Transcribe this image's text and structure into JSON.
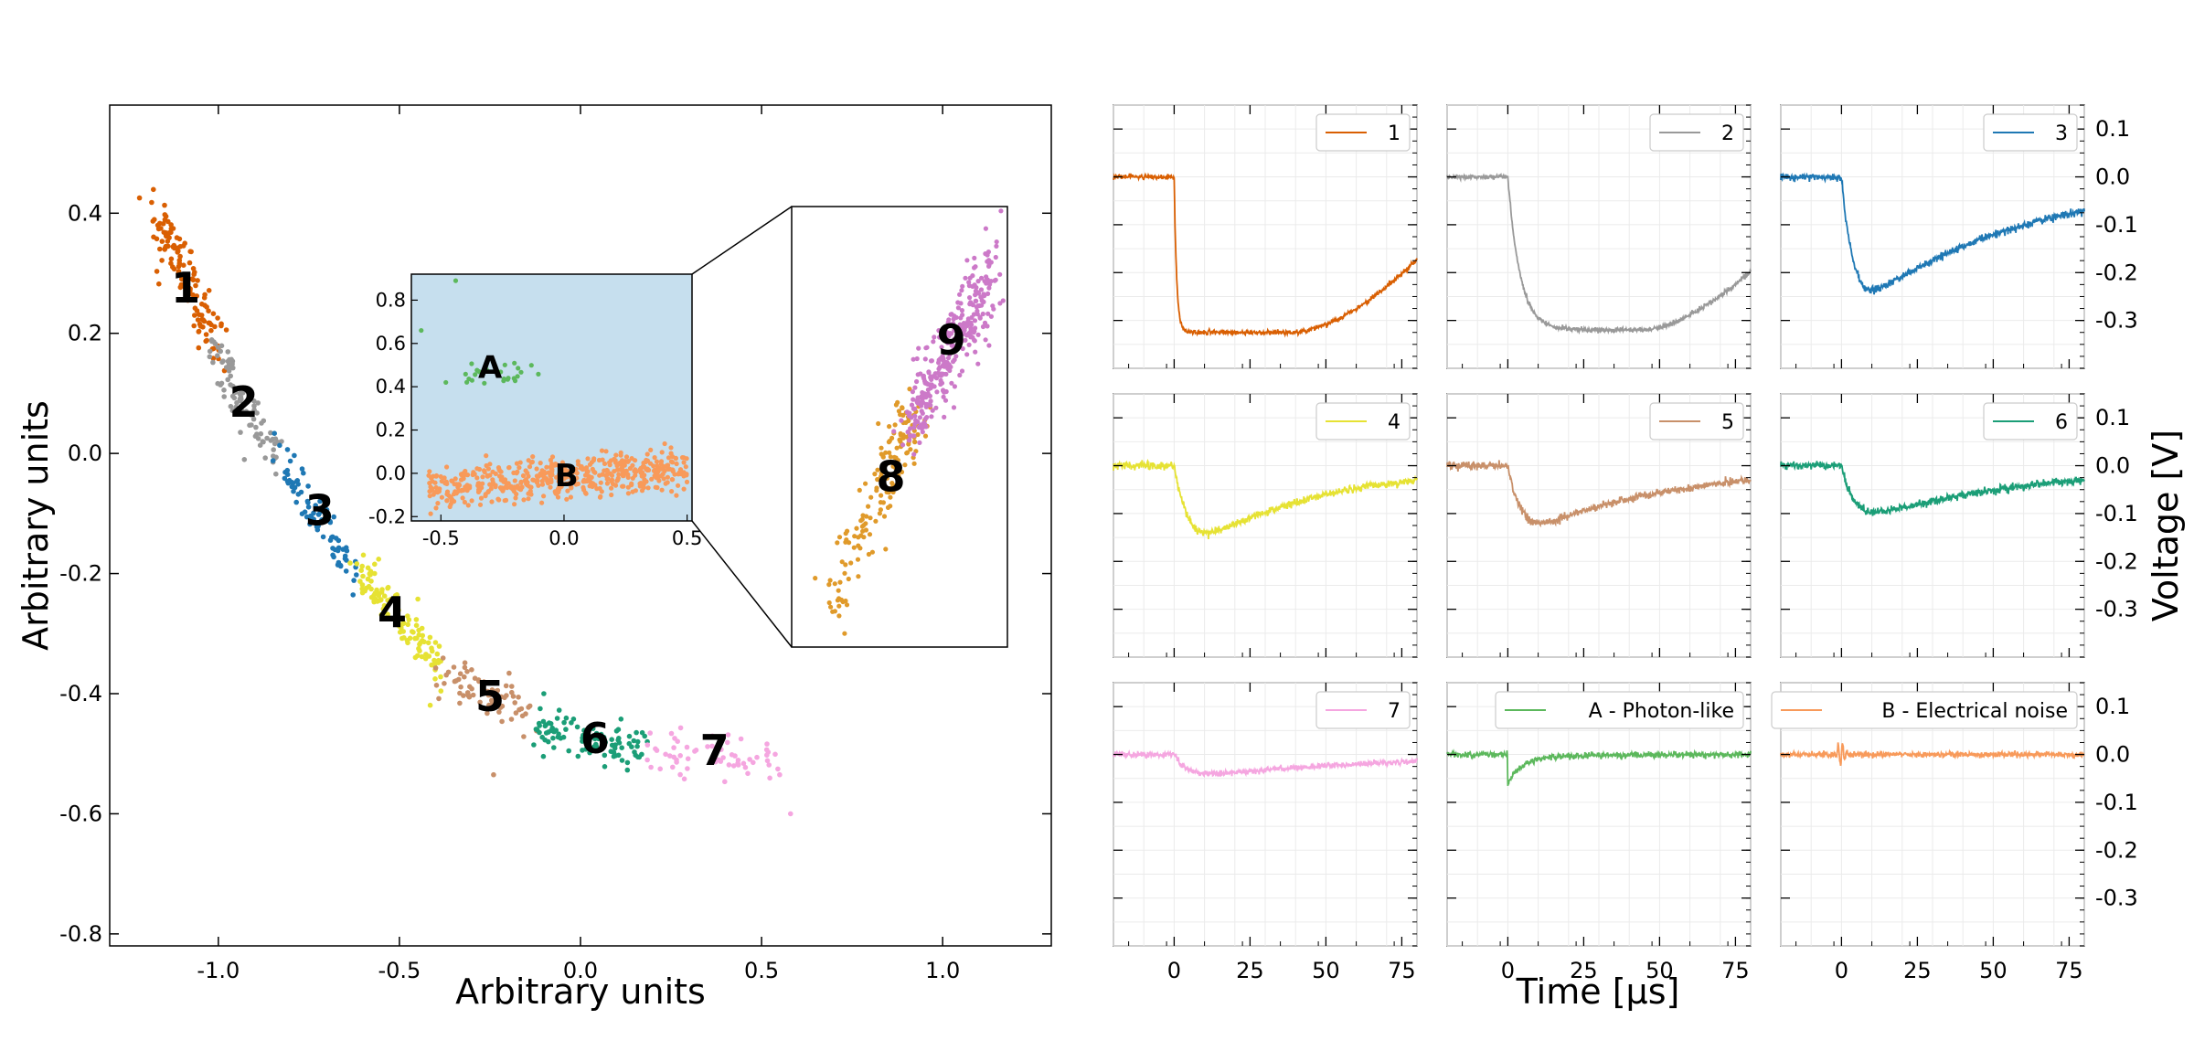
{
  "colors": {
    "c1": "#d95f02",
    "c2": "#999999",
    "c3": "#1f78b4",
    "c4": "#e6e233",
    "c5": "#c8906a",
    "c6": "#1b9e77",
    "c7": "#f5a6e0",
    "cA": "#5cb85c",
    "cB": "#f89a5a",
    "c8": "#e09a2a",
    "c9": "#cc79c8",
    "inset_bg": "#c6dfee"
  },
  "chart_data": [
    {
      "type": "scatter",
      "xlabel": "Arbitrary units",
      "ylabel": "Arbitrary units",
      "xlim": [
        -1.3,
        1.3
      ],
      "ylim": [
        -0.82,
        0.58
      ],
      "xticks": [
        -1.0,
        -0.5,
        0.0,
        0.5,
        1.0
      ],
      "xtick_labels": [
        "-1.0",
        "-0.5",
        "0.0",
        "0.5",
        "1.0"
      ],
      "yticks": [
        -0.8,
        -0.6,
        -0.4,
        -0.2,
        0.0,
        0.2,
        0.4
      ],
      "ytick_labels": [
        "-0.8",
        "-0.6",
        "-0.4",
        "-0.2",
        "0.0",
        "0.2",
        "0.4"
      ],
      "clusters": [
        {
          "label": "1",
          "color": "c1",
          "x_range": [
            -1.18,
            -1.0
          ],
          "y_range": [
            0.41,
            0.18
          ],
          "spread": 0.025,
          "n": 130,
          "label_at": [
            -1.09,
            0.27
          ]
        },
        {
          "label": "2",
          "color": "c2",
          "x_range": [
            -1.02,
            -0.84
          ],
          "y_range": [
            0.18,
            -0.01
          ],
          "spread": 0.018,
          "n": 90,
          "label_at": [
            -0.93,
            0.08
          ]
        },
        {
          "label": "3",
          "color": "c3",
          "x_range": [
            -0.84,
            -0.63
          ],
          "y_range": [
            0.0,
            -0.2
          ],
          "spread": 0.018,
          "n": 80,
          "label_at": [
            -0.72,
            -0.1
          ]
        },
        {
          "label": "4",
          "color": "c4",
          "x_range": [
            -0.63,
            -0.38
          ],
          "y_range": [
            -0.18,
            -0.36
          ],
          "spread": 0.02,
          "n": 110,
          "label_at": [
            -0.52,
            -0.27
          ]
        },
        {
          "label": "5",
          "color": "c5",
          "x_range": [
            -0.4,
            -0.13
          ],
          "y_range": [
            -0.36,
            -0.44
          ],
          "spread": 0.022,
          "n": 70,
          "label_at": [
            -0.25,
            -0.41
          ]
        },
        {
          "label": "6",
          "color": "c6",
          "x_range": [
            -0.12,
            0.18
          ],
          "y_range": [
            -0.45,
            -0.5
          ],
          "spread": 0.018,
          "n": 95,
          "label_at": [
            0.04,
            -0.48
          ]
        },
        {
          "label": "7",
          "color": "c7",
          "x_range": [
            0.18,
            0.55
          ],
          "y_range": [
            -0.49,
            -0.52
          ],
          "spread": 0.018,
          "n": 60,
          "label_at": [
            0.37,
            -0.5
          ]
        }
      ],
      "outliers": [
        [
          -0.24,
          -0.535
        ],
        [
          0.58,
          -0.6
        ],
        [
          0.55,
          -0.535
        ]
      ]
    },
    {
      "type": "scatter",
      "role": "inset",
      "xlim": [
        -0.62,
        0.52
      ],
      "ylim": [
        -0.22,
        0.92
      ],
      "xticks": [
        -0.5,
        0.0,
        0.5
      ],
      "xtick_labels": [
        "-0.5",
        "0.0",
        "0.5"
      ],
      "yticks": [
        -0.2,
        0.0,
        0.2,
        0.4,
        0.6,
        0.8
      ],
      "ytick_labels": [
        "-0.2",
        "0.0",
        "0.2",
        "0.4",
        "0.6",
        "0.8"
      ],
      "clusters": [
        {
          "label": "A",
          "color": "cA",
          "center": [
            -0.3,
            0.46
          ],
          "sx": 0.1,
          "sy": 0.03,
          "n": 25,
          "label_at": [
            -0.3,
            0.48
          ]
        },
        {
          "label": "B",
          "color": "cB",
          "center": [
            0.0,
            -0.02
          ],
          "sx": 0.2,
          "sy": 0.05,
          "n": 520,
          "label_at": [
            0.01,
            -0.02
          ]
        }
      ],
      "outliers_A": [
        [
          -0.44,
          0.89
        ],
        [
          -0.58,
          0.66
        ],
        [
          -0.48,
          0.42
        ]
      ]
    },
    {
      "type": "scatter",
      "role": "zoom",
      "clusters": [
        {
          "label": "8",
          "color": "c8",
          "n": 160,
          "label_at": [
            0.46,
            0.62
          ]
        },
        {
          "label": "9",
          "color": "c9",
          "n": 320,
          "label_at": [
            0.74,
            0.31
          ]
        }
      ]
    },
    {
      "type": "line",
      "xlabel": "Time [μs]",
      "ylabel": "Voltage [V]",
      "xlim": [
        -20,
        80
      ],
      "ylim": [
        -0.4,
        0.15
      ],
      "xticks": [
        0,
        25,
        50,
        75
      ],
      "xtick_labels": [
        "0",
        "25",
        "50",
        "75"
      ],
      "yticks": [
        0.1,
        0.0,
        -0.1,
        -0.2,
        -0.3
      ],
      "ytick_labels": [
        "0.1",
        "0.0",
        "-0.1",
        "-0.2",
        "-0.3"
      ],
      "series": [
        {
          "name": "1",
          "color": "c1",
          "shape": "square",
          "depth": -0.325,
          "tr": 0.8,
          "rec_start": 40,
          "rec_end": 0.165,
          "noise": 0.0025
        },
        {
          "name": "2",
          "color": "c2",
          "shape": "square",
          "depth": -0.32,
          "tr": 4,
          "rec_start": 45,
          "rec_end": 0.135,
          "noise": 0.0025
        },
        {
          "name": "3",
          "color": "c3",
          "shape": "dip",
          "depth": -0.26,
          "tr": 3.5,
          "rec": 55,
          "noise": 0.004
        },
        {
          "name": "4",
          "color": "c4",
          "shape": "dip",
          "depth": -0.165,
          "tr": 4.5,
          "rec": 42,
          "noise": 0.004
        },
        {
          "name": "5",
          "color": "c5",
          "shape": "dip",
          "depth": -0.135,
          "tr": 4,
          "rec": 48,
          "noise": 0.004
        },
        {
          "name": "6",
          "color": "c6",
          "shape": "dip",
          "depth": -0.11,
          "tr": 4,
          "rec": 55,
          "noise": 0.004
        },
        {
          "name": "7",
          "color": "c7",
          "shape": "dip",
          "depth": -0.045,
          "tr": 4,
          "rec": 65,
          "noise": 0.003
        },
        {
          "name": "A - Photon-like",
          "color": "cA",
          "shape": "spike",
          "depth": -0.055,
          "tr": 0.1,
          "rec": 4,
          "noise": 0.003
        },
        {
          "name": "B - Electrical noise",
          "color": "cB",
          "shape": "ring",
          "depth": 0.035,
          "noise": 0.003
        }
      ]
    }
  ]
}
